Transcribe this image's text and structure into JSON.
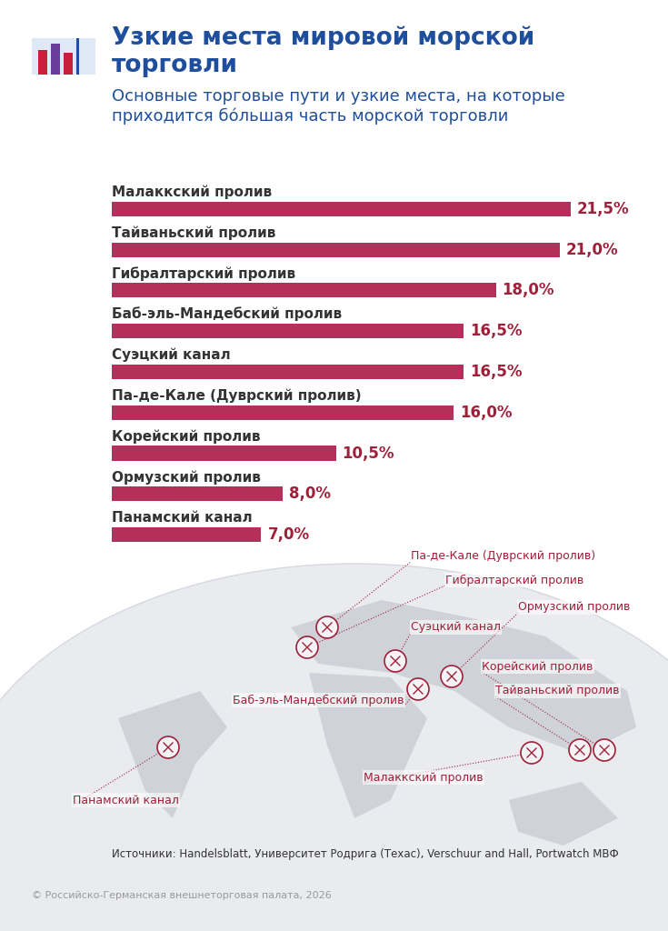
{
  "chart_data": {
    "type": "bar",
    "title": "Узкие места мировой морской торговли",
    "subtitle": "Основные торговые пути и узкие места, на которые приходится бóльшая часть морской торговли",
    "categories": [
      "Малаккский пролив",
      "Тайваньский пролив",
      "Гибралтарский пролив",
      "Баб-эль-Мандебский пролив",
      "Суэцкий канал",
      "Па-де-Кале (Дуврский пролив)",
      "Корейский пролив",
      "Ормузский пролив",
      "Панамский канал"
    ],
    "values": [
      21.5,
      21.0,
      18.0,
      16.5,
      16.5,
      16.0,
      10.5,
      8.0,
      7.0
    ],
    "value_labels": [
      "21,5%",
      "21,0%",
      "18,0%",
      "16,5%",
      "16,5%",
      "16,0%",
      "10,5%",
      "8,0%",
      "7,0%"
    ],
    "orientation": "horizontal",
    "data_labels": true,
    "tick_labels": false,
    "color": "#b4305a",
    "xlim": [
      0,
      25
    ],
    "xticks": [],
    "annotations": [
      "Па-де-Кале (Дуврский пролив)",
      "Гибралтарский пролив",
      "Суэцкий канал",
      "Ормузский пролив",
      "Корейский пролив",
      "Тайваньский пролив",
      "Баб-эль-Мандебский пролив",
      "Малаккский пролив",
      "Панамский канал"
    ],
    "source": "Источники: Handelsblatt, Университет Родрига (Техас), Verschuur and Hall, Portwatch МВФ",
    "footer": "© Российско-Германская внешнеторговая палата, 2026"
  }
}
